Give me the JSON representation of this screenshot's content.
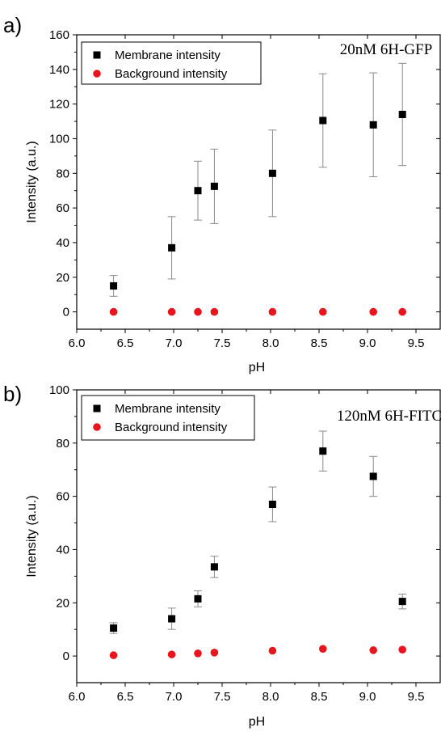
{
  "chart_data": [
    {
      "panel": "a)",
      "type": "scatter",
      "annotation": "20nM 6H-GFP",
      "xlabel": "pH",
      "ylabel": "Intensity (a.u.)",
      "xlim": [
        6.0,
        9.75
      ],
      "ylim": [
        -10,
        160
      ],
      "xticks": [
        "6.0",
        "6.5",
        "7.0",
        "7.5",
        "8.0",
        "8.5",
        "9.0",
        "9.5"
      ],
      "yticks": [
        "0",
        "20",
        "40",
        "60",
        "80",
        "100",
        "120",
        "140",
        "160"
      ],
      "legend_position": "top-left",
      "series": [
        {
          "name": "Membrane intensity",
          "marker": "square",
          "color": "#000000",
          "x": [
            6.38,
            6.98,
            7.25,
            7.42,
            8.02,
            8.54,
            9.06,
            9.36
          ],
          "y": [
            15,
            37,
            70,
            72.5,
            80,
            110.5,
            108,
            114
          ],
          "yerr": [
            6,
            18,
            17,
            21.5,
            25,
            27,
            30,
            29.5
          ]
        },
        {
          "name": "Background intensity",
          "marker": "circle",
          "color": "#e8141e",
          "x": [
            6.38,
            6.98,
            7.25,
            7.42,
            8.02,
            8.54,
            9.06,
            9.36
          ],
          "y": [
            0,
            0,
            0,
            0,
            0,
            0,
            0,
            0
          ]
        }
      ]
    },
    {
      "panel": "b)",
      "type": "scatter",
      "annotation": "120nM 6H-FITC",
      "xlabel": "pH",
      "ylabel": "Intensity (a.u.)",
      "xlim": [
        6.0,
        9.75
      ],
      "ylim": [
        -10,
        100
      ],
      "xticks": [
        "6.0",
        "6.5",
        "7.0",
        "7.5",
        "8.0",
        "8.5",
        "9.0",
        "9.5"
      ],
      "yticks": [
        "0",
        "20",
        "40",
        "60",
        "80",
        "100"
      ],
      "legend_position": "top-left",
      "series": [
        {
          "name": "Membrane intensity",
          "marker": "square",
          "color": "#000000",
          "x": [
            6.38,
            6.98,
            7.25,
            7.42,
            8.02,
            8.54,
            9.06,
            9.36
          ],
          "y": [
            10.5,
            14,
            21.5,
            33.5,
            57,
            77,
            67.5,
            20.5
          ],
          "yerr": [
            2,
            4,
            3,
            4,
            6.5,
            7.5,
            7.5,
            2.8
          ]
        },
        {
          "name": "Background intensity",
          "marker": "circle",
          "color": "#e8141e",
          "x": [
            6.38,
            6.98,
            7.25,
            7.42,
            8.02,
            8.54,
            9.06,
            9.36
          ],
          "y": [
            0.3,
            0.6,
            1.0,
            1.3,
            2.0,
            2.7,
            2.2,
            2.4
          ]
        }
      ]
    }
  ]
}
